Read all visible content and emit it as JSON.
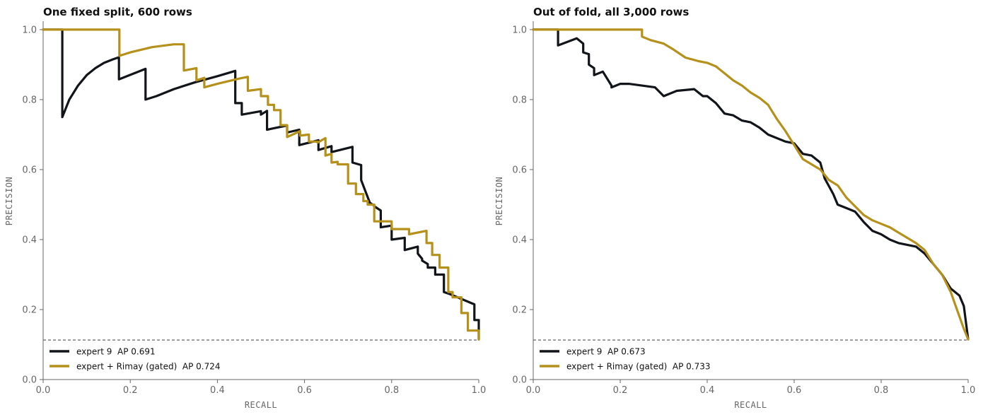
{
  "colors": {
    "expert": "#111418",
    "rimay": "#b5901a",
    "baseline": "#555555",
    "axis": "#666666"
  },
  "chart_data": [
    {
      "type": "line",
      "title": "One fixed split, 600 rows",
      "xlabel": "RECALL",
      "ylabel": "PRECISION",
      "xlim": [
        0,
        1
      ],
      "ylim": [
        0,
        1.02
      ],
      "xticks": [
        "0.0",
        "0.2",
        "0.4",
        "0.6",
        "0.8",
        "1.0"
      ],
      "yticks": [
        "0.0",
        "0.2",
        "0.4",
        "0.6",
        "0.8",
        "1.0"
      ],
      "grid": false,
      "legend_position": "bottom-left",
      "baseline_precision": 0.113,
      "series": [
        {
          "name": "expert 9  AP 0.691",
          "x": [
            0.0,
            0.044,
            0.044,
            0.06,
            0.08,
            0.1,
            0.12,
            0.14,
            0.16,
            0.174,
            0.174,
            0.235,
            0.235,
            0.26,
            0.3,
            0.35,
            0.4,
            0.441,
            0.441,
            0.456,
            0.456,
            0.5,
            0.5,
            0.514,
            0.514,
            0.56,
            0.56,
            0.588,
            0.588,
            0.632,
            0.632,
            0.662,
            0.662,
            0.71,
            0.71,
            0.73,
            0.73,
            0.75,
            0.75,
            0.76,
            0.76,
            0.775,
            0.775,
            0.8,
            0.8,
            0.83,
            0.83,
            0.86,
            0.86,
            0.87,
            0.87,
            0.883,
            0.883,
            0.9,
            0.9,
            0.92,
            0.92,
            0.932,
            0.932,
            0.99,
            0.99,
            1.0,
            1.0
          ],
          "y": [
            1.0,
            1.0,
            0.75,
            0.8,
            0.84,
            0.87,
            0.89,
            0.905,
            0.915,
            0.921,
            0.858,
            0.888,
            0.8,
            0.81,
            0.83,
            0.85,
            0.867,
            0.882,
            0.79,
            0.79,
            0.757,
            0.767,
            0.757,
            0.768,
            0.714,
            0.726,
            0.706,
            0.714,
            0.67,
            0.684,
            0.656,
            0.667,
            0.65,
            0.665,
            0.62,
            0.613,
            0.57,
            0.505,
            0.505,
            0.497,
            0.495,
            0.483,
            0.435,
            0.44,
            0.4,
            0.405,
            0.37,
            0.38,
            0.36,
            0.345,
            0.34,
            0.33,
            0.32,
            0.32,
            0.3,
            0.3,
            0.25,
            0.245,
            0.245,
            0.215,
            0.17,
            0.17,
            0.115
          ]
        },
        {
          "name": "expert + Rimay (gated)  AP 0.724",
          "x": [
            0.0,
            0.175,
            0.175,
            0.2,
            0.25,
            0.3,
            0.323,
            0.323,
            0.352,
            0.352,
            0.37,
            0.37,
            0.4,
            0.45,
            0.47,
            0.47,
            0.5,
            0.5,
            0.516,
            0.516,
            0.53,
            0.53,
            0.545,
            0.545,
            0.56,
            0.56,
            0.59,
            0.59,
            0.61,
            0.61,
            0.63,
            0.63,
            0.648,
            0.648,
            0.662,
            0.662,
            0.676,
            0.676,
            0.7,
            0.7,
            0.718,
            0.718,
            0.735,
            0.735,
            0.745,
            0.745,
            0.76,
            0.76,
            0.8,
            0.8,
            0.84,
            0.84,
            0.88,
            0.88,
            0.893,
            0.893,
            0.91,
            0.91,
            0.93,
            0.93,
            0.94,
            0.94,
            0.96,
            0.96,
            0.975,
            0.975,
            0.99,
            0.99,
            1.0,
            1.0
          ],
          "y": [
            1.0,
            1.0,
            0.925,
            0.935,
            0.95,
            0.958,
            0.958,
            0.883,
            0.89,
            0.855,
            0.862,
            0.835,
            0.845,
            0.86,
            0.865,
            0.825,
            0.83,
            0.81,
            0.81,
            0.785,
            0.785,
            0.77,
            0.77,
            0.727,
            0.727,
            0.693,
            0.71,
            0.697,
            0.7,
            0.68,
            0.68,
            0.677,
            0.69,
            0.64,
            0.645,
            0.62,
            0.622,
            0.615,
            0.615,
            0.56,
            0.56,
            0.53,
            0.53,
            0.51,
            0.51,
            0.5,
            0.5,
            0.452,
            0.452,
            0.43,
            0.43,
            0.415,
            0.425,
            0.39,
            0.39,
            0.356,
            0.356,
            0.32,
            0.32,
            0.25,
            0.25,
            0.235,
            0.235,
            0.19,
            0.19,
            0.14,
            0.14,
            0.14,
            0.14,
            0.115
          ]
        }
      ]
    },
    {
      "type": "line",
      "title": "Out of fold, all 3,000 rows",
      "xlabel": "RECALL",
      "ylabel": "PRECISION",
      "xlim": [
        0,
        1
      ],
      "ylim": [
        0,
        1.02
      ],
      "xticks": [
        "0.0",
        "0.2",
        "0.4",
        "0.6",
        "0.8",
        "1.0"
      ],
      "yticks": [
        "0.0",
        "0.2",
        "0.4",
        "0.6",
        "0.8",
        "1.0"
      ],
      "grid": false,
      "legend_position": "bottom-left",
      "baseline_precision": 0.113,
      "series": [
        {
          "name": "expert 9  AP 0.673",
          "x": [
            0.0,
            0.057,
            0.057,
            0.1,
            0.115,
            0.115,
            0.128,
            0.128,
            0.14,
            0.14,
            0.16,
            0.18,
            0.18,
            0.2,
            0.22,
            0.25,
            0.28,
            0.3,
            0.33,
            0.37,
            0.39,
            0.4,
            0.42,
            0.44,
            0.46,
            0.48,
            0.5,
            0.52,
            0.54,
            0.56,
            0.58,
            0.6,
            0.62,
            0.64,
            0.66,
            0.67,
            0.69,
            0.7,
            0.72,
            0.74,
            0.76,
            0.78,
            0.8,
            0.82,
            0.84,
            0.86,
            0.88,
            0.9,
            0.92,
            0.94,
            0.96,
            0.98,
            0.99,
            1.0
          ],
          "y": [
            1.0,
            1.0,
            0.955,
            0.975,
            0.96,
            0.935,
            0.93,
            0.9,
            0.89,
            0.87,
            0.88,
            0.84,
            0.835,
            0.845,
            0.845,
            0.84,
            0.835,
            0.81,
            0.825,
            0.83,
            0.81,
            0.81,
            0.79,
            0.76,
            0.755,
            0.74,
            0.735,
            0.72,
            0.7,
            0.69,
            0.68,
            0.675,
            0.645,
            0.64,
            0.62,
            0.575,
            0.53,
            0.5,
            0.49,
            0.48,
            0.45,
            0.425,
            0.415,
            0.4,
            0.39,
            0.385,
            0.38,
            0.36,
            0.33,
            0.3,
            0.26,
            0.24,
            0.21,
            0.115
          ]
        },
        {
          "name": "expert + Rimay (gated)  AP 0.733",
          "x": [
            0.0,
            0.1,
            0.2,
            0.25,
            0.25,
            0.27,
            0.3,
            0.32,
            0.35,
            0.38,
            0.4,
            0.42,
            0.44,
            0.46,
            0.48,
            0.5,
            0.52,
            0.54,
            0.56,
            0.58,
            0.6,
            0.62,
            0.64,
            0.66,
            0.68,
            0.7,
            0.72,
            0.74,
            0.76,
            0.78,
            0.8,
            0.82,
            0.84,
            0.86,
            0.88,
            0.9,
            0.92,
            0.94,
            0.96,
            0.98,
            0.99,
            1.0
          ],
          "y": [
            1.0,
            1.0,
            1.0,
            1.0,
            0.98,
            0.97,
            0.96,
            0.945,
            0.92,
            0.91,
            0.905,
            0.895,
            0.875,
            0.855,
            0.84,
            0.82,
            0.805,
            0.785,
            0.745,
            0.71,
            0.67,
            0.63,
            0.615,
            0.6,
            0.57,
            0.555,
            0.52,
            0.495,
            0.47,
            0.455,
            0.445,
            0.435,
            0.42,
            0.405,
            0.39,
            0.37,
            0.33,
            0.3,
            0.25,
            0.18,
            0.145,
            0.115
          ]
        }
      ]
    }
  ]
}
